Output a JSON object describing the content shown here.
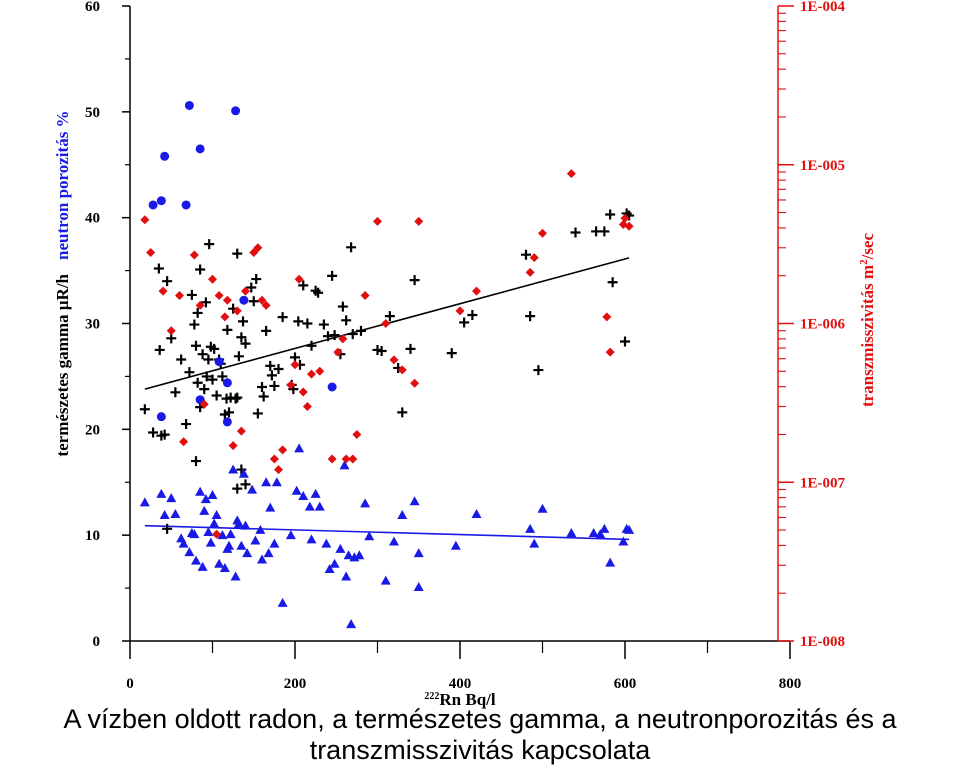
{
  "chart_data": {
    "type": "scatter",
    "caption": [
      "A vízben oldott radon, a természetes gamma, a neutronporozitás és a",
      "transzmisszivitás kapcsolata"
    ],
    "xlabel": {
      "sup": "222",
      "main": "Rn  Bq/l"
    },
    "ylabel_left": {
      "part1": "természetes gamma ",
      "mu": "µ",
      "part2": "R/h",
      "part3": "neutron porozitás  %"
    },
    "ylabel_right": {
      "main": "transzmisszivitás  m",
      "sup": "2",
      "tail": "/sec"
    },
    "xlim": [
      0,
      800
    ],
    "ylim_left": [
      0,
      60
    ],
    "ylim_right": [
      1e-08,
      0.0001
    ],
    "right_log_scale": true,
    "x_ticks": [
      "0",
      "200",
      "400",
      "600",
      "800"
    ],
    "y_ticks_left": [
      "0",
      "10",
      "20",
      "30",
      "40",
      "50",
      "60"
    ],
    "y_ticks_right": [
      "1E-008",
      "1E-007",
      "1E-006",
      "1E-005",
      "1E-004"
    ],
    "colors": {
      "gamma": "#000000",
      "porosity": "#1a1ae6",
      "transmissivity": "#e01010"
    },
    "series": [
      {
        "marker": "plus",
        "axis": "left",
        "color": "#000000",
        "points": [
          [
            18,
            21.9
          ],
          [
            28,
            19.7
          ],
          [
            35,
            35.2
          ],
          [
            38,
            19.4
          ],
          [
            42,
            19.5
          ],
          [
            36,
            27.5
          ],
          [
            45,
            34.0
          ],
          [
            50,
            28.6
          ],
          [
            55,
            23.5
          ],
          [
            62,
            26.6
          ],
          [
            68,
            20.5
          ],
          [
            72,
            25.4
          ],
          [
            75,
            32.7
          ],
          [
            78,
            29.9
          ],
          [
            80,
            27.9
          ],
          [
            82,
            31.0
          ],
          [
            82,
            24.4
          ],
          [
            85,
            35.1
          ],
          [
            88,
            27.1
          ],
          [
            90,
            23.8
          ],
          [
            92,
            32.0
          ],
          [
            93,
            25.0
          ],
          [
            95,
            26.6
          ],
          [
            96,
            37.5
          ],
          [
            98,
            27.8
          ],
          [
            100,
            24.7
          ],
          [
            102,
            27.6
          ],
          [
            105,
            23.2
          ],
          [
            108,
            26.6
          ],
          [
            110,
            26.2
          ],
          [
            112,
            25.0
          ],
          [
            115,
            21.4
          ],
          [
            117,
            22.9
          ],
          [
            118,
            29.4
          ],
          [
            120,
            21.6
          ],
          [
            122,
            23.0
          ],
          [
            125,
            31.4
          ],
          [
            128,
            22.9
          ],
          [
            130,
            36.6
          ],
          [
            132,
            26.9
          ],
          [
            135,
            28.7
          ],
          [
            137,
            30.2
          ],
          [
            140,
            28.1
          ],
          [
            147,
            33.4
          ],
          [
            150,
            32.1
          ],
          [
            153,
            34.2
          ],
          [
            155,
            21.5
          ],
          [
            160,
            24.0
          ],
          [
            162,
            23.1
          ],
          [
            165,
            29.3
          ],
          [
            170,
            26.0
          ],
          [
            172,
            25.1
          ],
          [
            175,
            24.1
          ],
          [
            180,
            25.7
          ],
          [
            185,
            30.6
          ],
          [
            196,
            24.2
          ],
          [
            198,
            23.8
          ],
          [
            200,
            26.8
          ],
          [
            204,
            30.2
          ],
          [
            206,
            26.1
          ],
          [
            210,
            33.6
          ],
          [
            215,
            30.0
          ],
          [
            220,
            27.9
          ],
          [
            225,
            33.1
          ],
          [
            228,
            32.9
          ],
          [
            235,
            29.9
          ],
          [
            240,
            28.8
          ],
          [
            245,
            34.5
          ],
          [
            248,
            28.9
          ],
          [
            255,
            27.1
          ],
          [
            258,
            31.6
          ],
          [
            262,
            30.3
          ],
          [
            268,
            37.2
          ],
          [
            270,
            29.0
          ],
          [
            280,
            29.3
          ],
          [
            300,
            27.5
          ],
          [
            305,
            27.4
          ],
          [
            315,
            30.7
          ],
          [
            325,
            25.8
          ],
          [
            330,
            21.6
          ],
          [
            340,
            27.6
          ],
          [
            345,
            34.1
          ],
          [
            390,
            27.2
          ],
          [
            405,
            30.1
          ],
          [
            415,
            30.8
          ],
          [
            480,
            36.5
          ],
          [
            485,
            30.7
          ],
          [
            495,
            25.6
          ],
          [
            540,
            38.6
          ],
          [
            565,
            38.7
          ],
          [
            575,
            38.7
          ],
          [
            582,
            40.3
          ],
          [
            585,
            33.9
          ],
          [
            600,
            28.3
          ],
          [
            602,
            40.4
          ],
          [
            605,
            40.2
          ],
          [
            45,
            10.6
          ],
          [
            80,
            17.0
          ],
          [
            85,
            22.1
          ],
          [
            130,
            14.4
          ],
          [
            135,
            16.2
          ],
          [
            130,
            23.0
          ],
          [
            140,
            14.8
          ]
        ]
      },
      {
        "marker": "circle",
        "axis": "left",
        "color": "#1a1ae6",
        "points": [
          [
            28,
            41.2
          ],
          [
            38,
            41.6
          ],
          [
            42,
            45.8
          ],
          [
            68,
            41.2
          ],
          [
            72,
            50.6
          ],
          [
            85,
            46.5
          ],
          [
            128,
            50.1
          ],
          [
            138,
            32.2
          ],
          [
            108,
            26.4
          ],
          [
            118,
            24.4
          ],
          [
            118,
            20.7
          ],
          [
            85,
            22.8
          ],
          [
            38,
            21.2
          ],
          [
            245,
            24.0
          ]
        ]
      },
      {
        "marker": "triangle",
        "axis": "left",
        "color": "#1a1ae6",
        "points": [
          [
            18,
            13.1
          ],
          [
            38,
            13.9
          ],
          [
            42,
            11.9
          ],
          [
            50,
            13.5
          ],
          [
            55,
            12.0
          ],
          [
            62,
            9.7
          ],
          [
            65,
            9.2
          ],
          [
            72,
            8.4
          ],
          [
            75,
            10.2
          ],
          [
            78,
            10.1
          ],
          [
            80,
            7.6
          ],
          [
            85,
            14.1
          ],
          [
            88,
            7.0
          ],
          [
            90,
            12.3
          ],
          [
            92,
            13.4
          ],
          [
            95,
            10.3
          ],
          [
            98,
            9.3
          ],
          [
            100,
            13.8
          ],
          [
            102,
            11.1
          ],
          [
            105,
            11.9
          ],
          [
            108,
            7.3
          ],
          [
            112,
            10.0
          ],
          [
            115,
            6.9
          ],
          [
            118,
            8.7
          ],
          [
            120,
            9.0
          ],
          [
            122,
            10.1
          ],
          [
            125,
            16.2
          ],
          [
            128,
            6.1
          ],
          [
            130,
            11.4
          ],
          [
            132,
            11.1
          ],
          [
            135,
            9.0
          ],
          [
            138,
            15.8
          ],
          [
            140,
            10.9
          ],
          [
            142,
            8.3
          ],
          [
            148,
            14.3
          ],
          [
            152,
            9.5
          ],
          [
            158,
            10.5
          ],
          [
            160,
            7.7
          ],
          [
            165,
            15.0
          ],
          [
            168,
            8.3
          ],
          [
            170,
            12.6
          ],
          [
            175,
            9.2
          ],
          [
            178,
            15.0
          ],
          [
            185,
            3.6
          ],
          [
            195,
            10.0
          ],
          [
            202,
            14.2
          ],
          [
            205,
            18.2
          ],
          [
            210,
            13.7
          ],
          [
            218,
            12.7
          ],
          [
            220,
            9.6
          ],
          [
            225,
            13.9
          ],
          [
            230,
            12.7
          ],
          [
            238,
            9.2
          ],
          [
            242,
            6.8
          ],
          [
            248,
            7.3
          ],
          [
            255,
            8.7
          ],
          [
            260,
            16.6
          ],
          [
            262,
            6.1
          ],
          [
            265,
            8.1
          ],
          [
            268,
            1.6
          ],
          [
            272,
            7.9
          ],
          [
            278,
            8.1
          ],
          [
            285,
            13.0
          ],
          [
            290,
            9.9
          ],
          [
            310,
            5.7
          ],
          [
            320,
            9.4
          ],
          [
            330,
            11.9
          ],
          [
            345,
            13.2
          ],
          [
            350,
            5.1
          ],
          [
            350,
            8.3
          ],
          [
            395,
            9.0
          ],
          [
            420,
            12.0
          ],
          [
            485,
            10.6
          ],
          [
            490,
            9.2
          ],
          [
            500,
            12.5
          ],
          [
            535,
            10.2
          ],
          [
            562,
            10.2
          ],
          [
            570,
            10.1
          ],
          [
            575,
            10.6
          ],
          [
            582,
            7.4
          ],
          [
            598,
            9.4
          ],
          [
            602,
            10.6
          ],
          [
            605,
            10.5
          ]
        ]
      },
      {
        "marker": "diamond",
        "axis": "right",
        "color": "#e01010",
        "points": [
          [
            18,
            4.5e-06
          ],
          [
            25,
            2.8e-06
          ],
          [
            40,
            1.6e-06
          ],
          [
            50,
            9e-07
          ],
          [
            60,
            1.5e-06
          ],
          [
            65,
            1.8e-07
          ],
          [
            78,
            2.7e-06
          ],
          [
            85,
            1.3e-06
          ],
          [
            90,
            3.1e-07
          ],
          [
            100,
            1.9e-06
          ],
          [
            105,
            4.7e-08
          ],
          [
            108,
            1.5e-06
          ],
          [
            115,
            1.1e-06
          ],
          [
            118,
            1.4e-06
          ],
          [
            125,
            1.7e-07
          ],
          [
            130,
            1.2e-06
          ],
          [
            135,
            2.1e-07
          ],
          [
            140,
            1.6e-06
          ],
          [
            150,
            2.8e-06
          ],
          [
            155,
            3e-06
          ],
          [
            160,
            1.4e-06
          ],
          [
            165,
            1.3e-06
          ],
          [
            175,
            1.4e-07
          ],
          [
            180,
            1.2e-07
          ],
          [
            185,
            1.6e-07
          ],
          [
            195,
            4.1e-07
          ],
          [
            200,
            5.5e-07
          ],
          [
            205,
            1.9e-06
          ],
          [
            210,
            3.7e-07
          ],
          [
            215,
            3e-07
          ],
          [
            220,
            4.8e-07
          ],
          [
            230,
            5e-07
          ],
          [
            245,
            1.4e-07
          ],
          [
            252,
            6.6e-07
          ],
          [
            258,
            8e-07
          ],
          [
            262,
            1.4e-07
          ],
          [
            270,
            1.4e-07
          ],
          [
            275,
            2e-07
          ],
          [
            285,
            1.5e-06
          ],
          [
            300,
            4.4e-06
          ],
          [
            310,
            1e-06
          ],
          [
            320,
            5.9e-07
          ],
          [
            330,
            5.1e-07
          ],
          [
            345,
            4.2e-07
          ],
          [
            350,
            4.4e-06
          ],
          [
            400,
            1.2e-06
          ],
          [
            420,
            1.6e-06
          ],
          [
            485,
            2.1e-06
          ],
          [
            490,
            2.6e-06
          ],
          [
            500,
            3.7e-06
          ],
          [
            535,
            8.8e-06
          ],
          [
            578,
            1.1e-06
          ],
          [
            582,
            6.6e-07
          ],
          [
            598,
            4.2e-06
          ],
          [
            600,
            4.6e-06
          ],
          [
            605,
            4.1e-06
          ]
        ]
      }
    ],
    "trendlines": [
      {
        "color": "#000000",
        "from": [
          18,
          23.8
        ],
        "to": [
          605,
          36.2
        ]
      },
      {
        "color": "#1a1ae6",
        "from": [
          18,
          10.9
        ],
        "to": [
          605,
          9.6
        ]
      }
    ]
  }
}
